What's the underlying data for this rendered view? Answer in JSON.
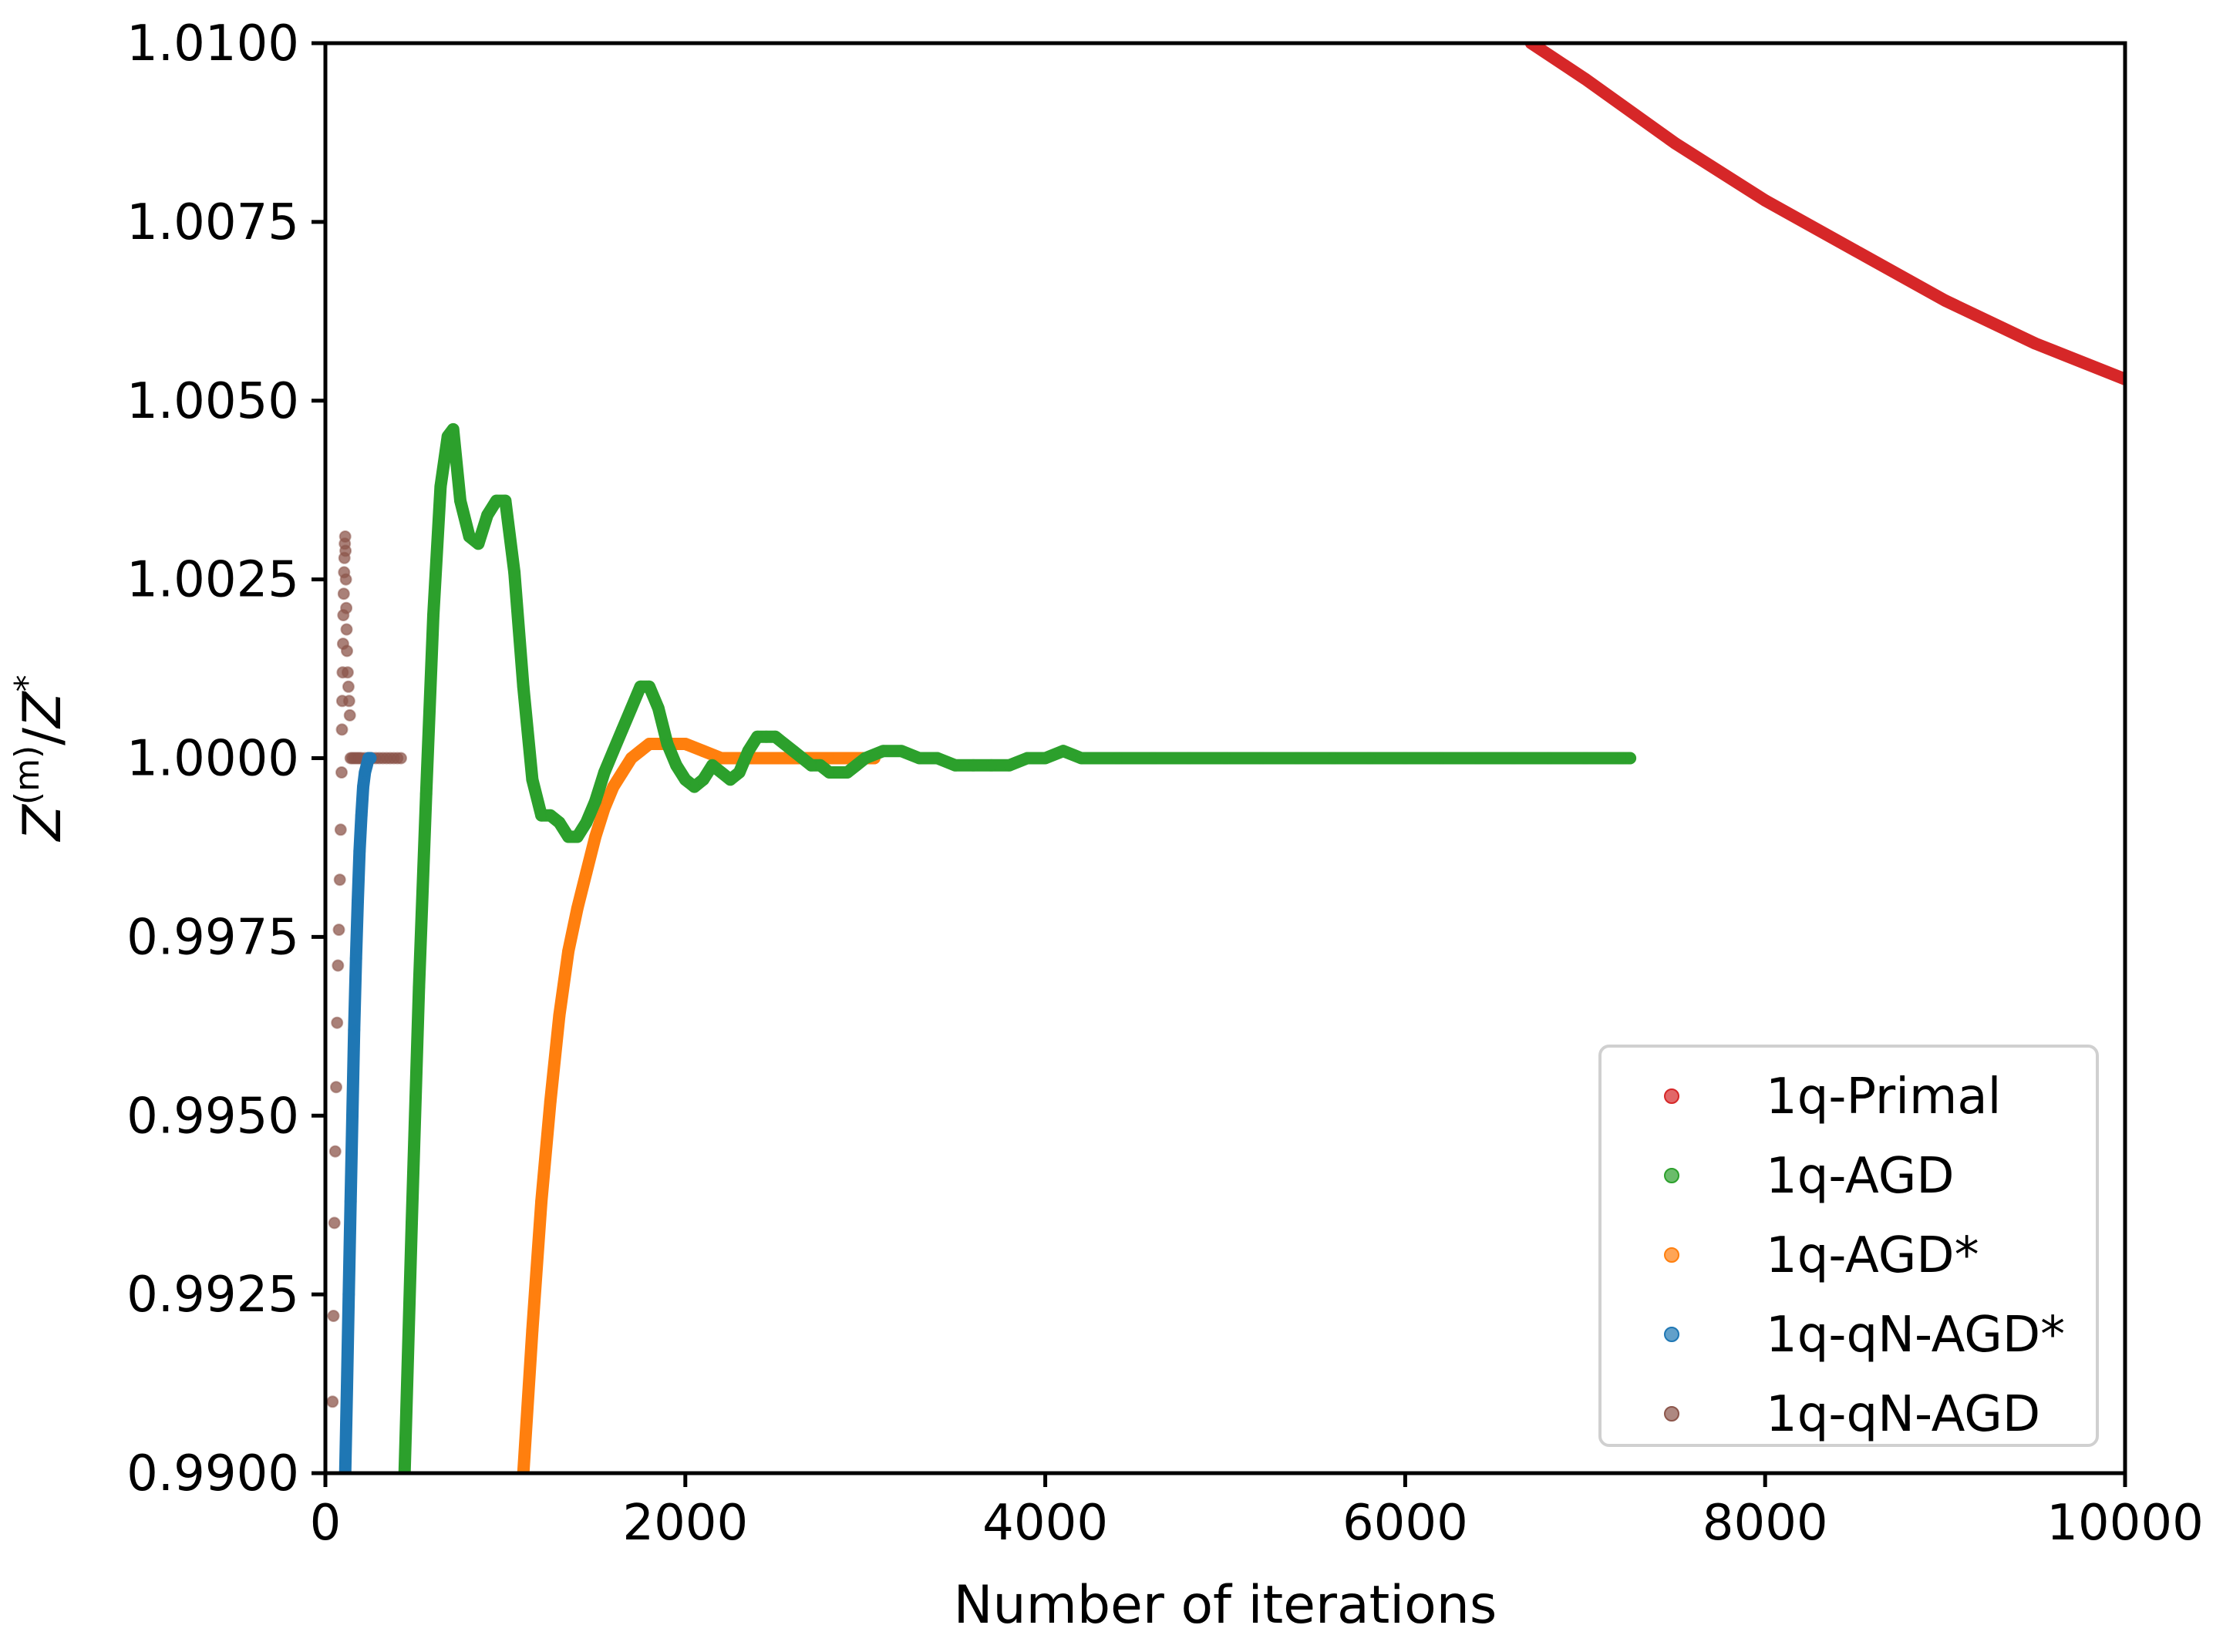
{
  "chart_data": {
    "type": "line",
    "xlabel": "Number of iterations",
    "ylabel": "Z^(m)/Z^*",
    "xlim": [
      0,
      10000
    ],
    "ylim": [
      0.99,
      1.01
    ],
    "x_ticks": [
      "0",
      "2000",
      "4000",
      "6000",
      "8000",
      "10000"
    ],
    "y_ticks": [
      "0.9900",
      "0.9925",
      "0.9950",
      "0.9975",
      "1.0000",
      "1.0025",
      "1.0050",
      "1.0075",
      "1.0100"
    ],
    "grid": false,
    "legend_position": "lower right",
    "series": [
      {
        "name": "1q-Primal",
        "color": "#d62728",
        "x": [
          6700,
          7000,
          7500,
          8000,
          8500,
          9000,
          9500,
          10000
        ],
        "y": [
          1.01,
          1.0095,
          1.0086,
          1.0078,
          1.0071,
          1.0064,
          1.0058,
          1.0053
        ]
      },
      {
        "name": "1q-AGD",
        "color": "#2ca02c",
        "x": [
          440,
          480,
          520,
          560,
          600,
          640,
          680,
          710,
          750,
          800,
          850,
          900,
          950,
          1000,
          1050,
          1100,
          1150,
          1200,
          1250,
          1300,
          1350,
          1400,
          1450,
          1500,
          1550,
          1600,
          1650,
          1700,
          1750,
          1800,
          1850,
          1900,
          1950,
          2000,
          2050,
          2100,
          2150,
          2200,
          2250,
          2300,
          2350,
          2400,
          2450,
          2500,
          2550,
          2600,
          2650,
          2700,
          2750,
          2800,
          2850,
          2900,
          2950,
          3000,
          3100,
          3200,
          3300,
          3400,
          3500,
          3600,
          3700,
          3800,
          3900,
          4000,
          4100,
          4200,
          4400,
          4600,
          4800,
          5000,
          5200,
          5400,
          5600,
          5800,
          6000,
          6200,
          6400,
          6600,
          6800,
          7000,
          7200,
          7250
        ],
        "y": [
          0.99,
          0.9935,
          0.9968,
          0.9995,
          1.002,
          1.0038,
          1.0045,
          1.0046,
          1.0036,
          1.0031,
          1.003,
          1.0034,
          1.0036,
          1.0036,
          1.0026,
          1.001,
          0.9997,
          0.9992,
          0.9992,
          0.9991,
          0.9989,
          0.9989,
          0.9991,
          0.9994,
          0.9998,
          1.0001,
          1.0004,
          1.0007,
          1.001,
          1.001,
          1.0007,
          1.0002,
          0.9999,
          0.9997,
          0.9996,
          0.9997,
          0.9999,
          0.9998,
          0.9997,
          0.9998,
          1.0001,
          1.0003,
          1.0003,
          1.0003,
          1.0002,
          1.0001,
          1.0,
          0.9999,
          0.9999,
          0.9998,
          0.9998,
          0.9998,
          0.9999,
          1.0,
          1.0001,
          1.0001,
          1.0,
          1.0,
          0.9999,
          0.9999,
          0.9999,
          0.9999,
          1.0,
          1.0,
          1.0001,
          1.0,
          1.0,
          1.0,
          1.0,
          1.0,
          1.0,
          1.0,
          1.0,
          1.0,
          1.0,
          1.0,
          1.0,
          1.0,
          1.0,
          1.0,
          1.0,
          1.0
        ]
      },
      {
        "name": "1q-AGD*",
        "color": "#ff7f0e",
        "x": [
          1100,
          1150,
          1200,
          1250,
          1300,
          1350,
          1400,
          1450,
          1500,
          1550,
          1600,
          1650,
          1700,
          1750,
          1800,
          1850,
          1900,
          1950,
          2000,
          2100,
          2200,
          2300,
          2400,
          2500,
          2600,
          2700,
          2800,
          2900,
          3000,
          3050
        ],
        "y": [
          0.99,
          0.992,
          0.9938,
          0.9952,
          0.9964,
          0.9973,
          0.9979,
          0.9984,
          0.9989,
          0.9993,
          0.9996,
          0.9998,
          1.0,
          1.0001,
          1.0002,
          1.0002,
          1.0002,
          1.0002,
          1.0002,
          1.0001,
          1.0,
          1.0,
          1.0,
          1.0,
          1.0,
          1.0,
          1.0,
          1.0,
          1.0,
          1.0
        ]
      },
      {
        "name": "1q-qN-AGD*",
        "color": "#1f77b4",
        "x": [
          110,
          120,
          130,
          140,
          150,
          160,
          170,
          180,
          190,
          200,
          210,
          220,
          230,
          240,
          250
        ],
        "y": [
          0.99,
          0.9912,
          0.9925,
          0.9938,
          0.995,
          0.9962,
          0.9972,
          0.998,
          0.9987,
          0.9992,
          0.9996,
          0.9998,
          0.9999,
          1.0,
          1.0
        ]
      },
      {
        "name": "1q-qN-AGD",
        "color": "#8c564b",
        "x": [
          40,
          45,
          50,
          55,
          60,
          65,
          70,
          75,
          80,
          85,
          90,
          92,
          94,
          96,
          98,
          100,
          102,
          104,
          106,
          108,
          110,
          112,
          114,
          116,
          118,
          120,
          124,
          128,
          132,
          136,
          140,
          150,
          160,
          170,
          180,
          190,
          200,
          220,
          240,
          260,
          280,
          300,
          320,
          340,
          360,
          380,
          400,
          420
        ],
        "y": [
          0.991,
          0.9922,
          0.9935,
          0.9945,
          0.9954,
          0.9963,
          0.9971,
          0.9976,
          0.9983,
          0.999,
          0.9998,
          1.0004,
          1.0008,
          1.0012,
          1.0016,
          1.002,
          1.0023,
          1.0026,
          1.0028,
          1.003,
          1.0031,
          1.0029,
          1.0025,
          1.0021,
          1.0018,
          1.0015,
          1.0012,
          1.001,
          1.0008,
          1.0006,
          1.0,
          1.0,
          1.0,
          1.0,
          1.0,
          1.0,
          1.0,
          1.0,
          1.0,
          1.0,
          1.0,
          1.0,
          1.0,
          1.0,
          1.0,
          1.0,
          1.0,
          1.0
        ]
      }
    ]
  }
}
